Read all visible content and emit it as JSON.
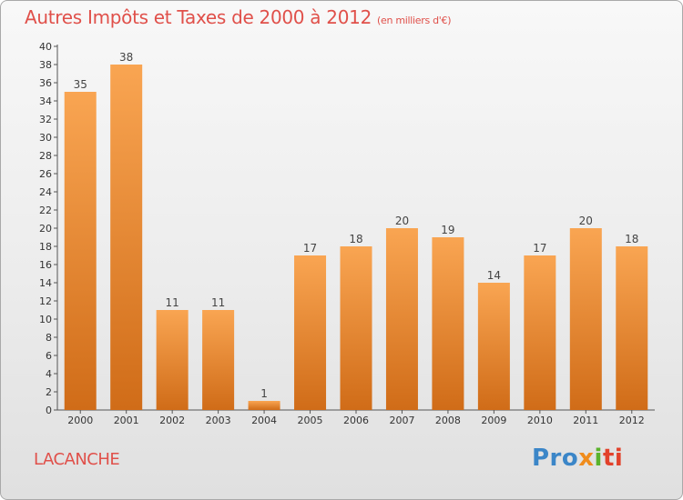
{
  "title": "Autres Impôts et Taxes de 2000 à 2012",
  "subtitle": "(en milliers d'€)",
  "commune": "LACANCHE",
  "logo": {
    "p1": "Pro",
    "p2": "x",
    "p3": "i",
    "p4": "ti"
  },
  "colors": {
    "title": "#e0504a",
    "bar_light": "#f9a552",
    "bar_dark": "#d06c18",
    "axis": "#555555",
    "grid": "#cccccc"
  },
  "chart_data": {
    "type": "bar",
    "title": "Autres Impôts et Taxes de 2000 à 2012",
    "xlabel": "",
    "ylabel": "",
    "categories": [
      "2000",
      "2001",
      "2002",
      "2003",
      "2004",
      "2005",
      "2006",
      "2007",
      "2008",
      "2009",
      "2010",
      "2011",
      "2012"
    ],
    "values": [
      35,
      38,
      11,
      11,
      1,
      17,
      18,
      20,
      19,
      14,
      17,
      20,
      18
    ],
    "ylim": [
      0,
      40
    ],
    "ytick_step": 2,
    "grid": false,
    "data_labels": true
  }
}
